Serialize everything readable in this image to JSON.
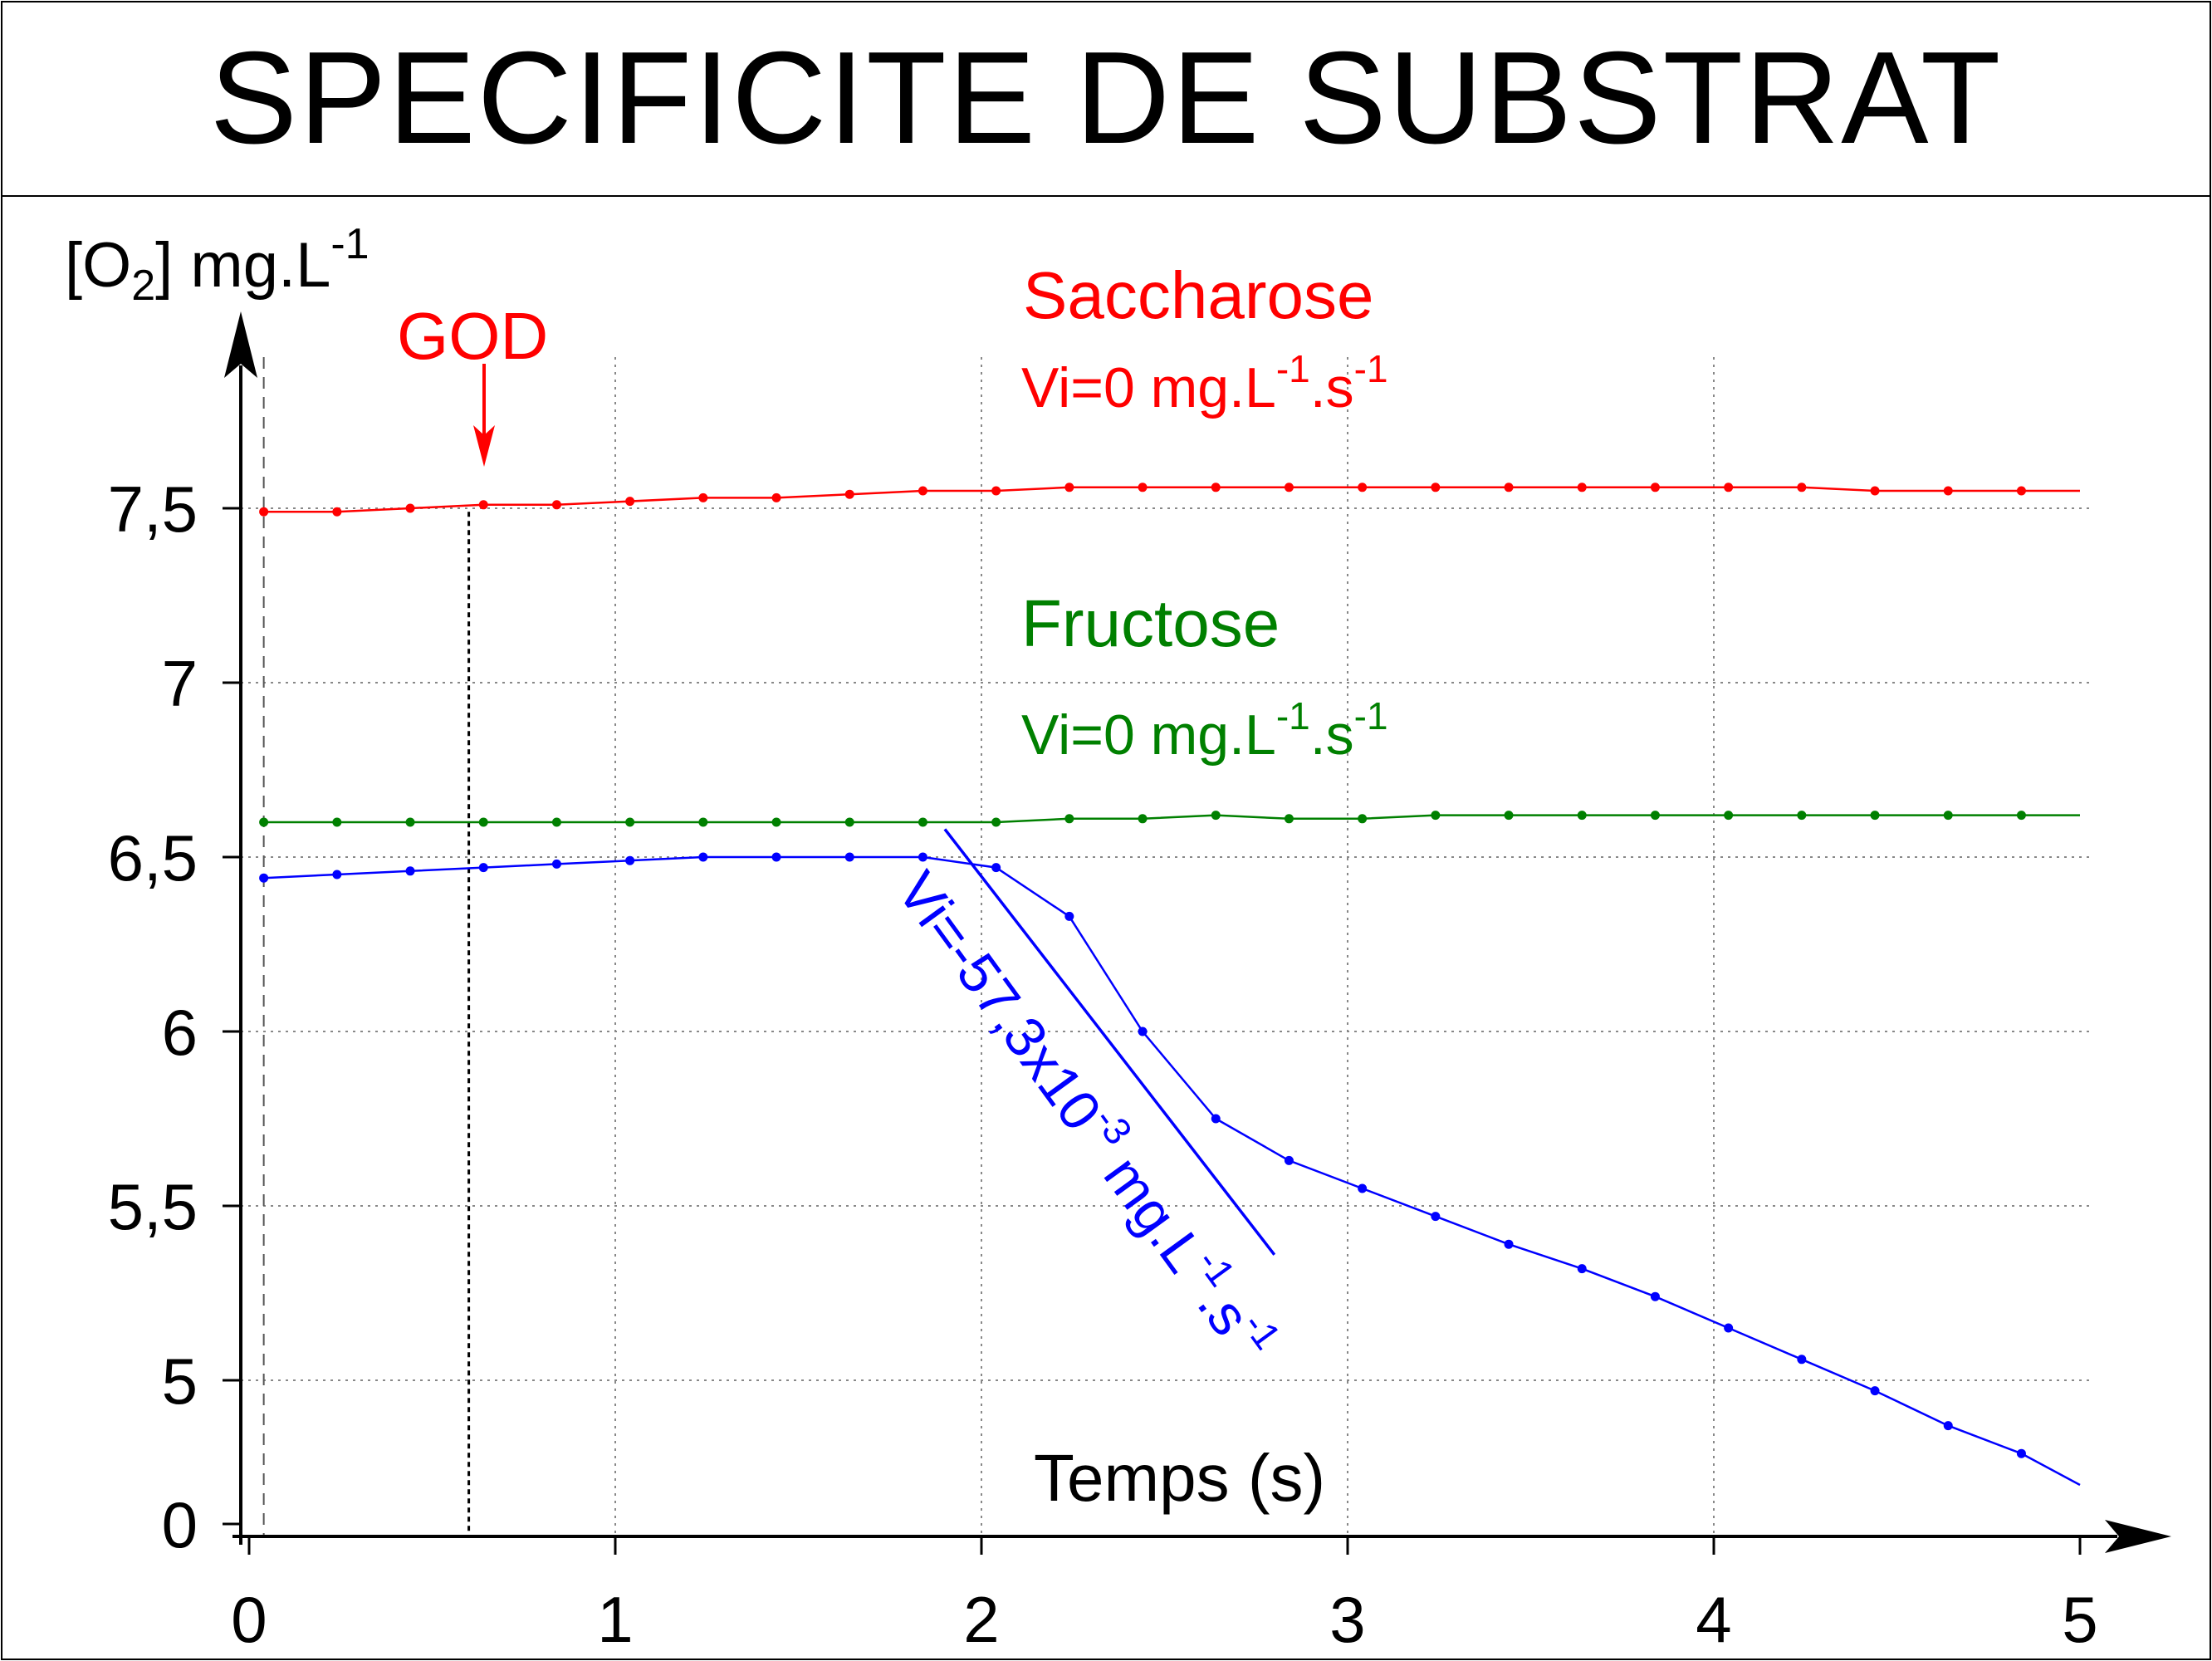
{
  "title": "SPECIFICITE DE SUBSTRAT",
  "colors": {
    "saccharose": "#ff0000",
    "fructose": "#008000",
    "glucose": "#0000ff",
    "axis": "#000000",
    "grid": "#888888",
    "god": "#ff0000"
  },
  "chart_data": {
    "type": "line",
    "title": "SPECIFICITE DE SUBSTRAT",
    "xlabel": "Temps (s)",
    "ylabel": {
      "main": "[O",
      "sub": "2",
      "rest": "] mg.L",
      "sup": "-1"
    },
    "x_ticks": [
      "0",
      "1",
      "2",
      "3",
      "4",
      "5"
    ],
    "y_ticks": [
      "0",
      "5",
      "5,5",
      "6",
      "6,5",
      "7",
      "7,5"
    ],
    "xlim": [
      0,
      5
    ],
    "ylim_display": [
      4.55,
      7.95
    ],
    "y_axis_break": "0 shown at bottom, scale starts near 4.6",
    "grid": "dotted",
    "god_marker": {
      "label": "GOD",
      "x": 0.6
    },
    "series": [
      {
        "key": "saccharose",
        "label": "Saccharose",
        "rate": {
          "text": "Vi=0 mg.L",
          "sup1": "-1",
          "mid": ".s",
          "sup2": "-1"
        },
        "x": [
          0.04,
          0.24,
          0.44,
          0.64,
          0.84,
          1.04,
          1.24,
          1.44,
          1.64,
          1.84,
          2.04,
          2.24,
          2.44,
          2.64,
          2.84,
          3.04,
          3.24,
          3.44,
          3.64,
          3.84,
          4.04,
          4.24,
          4.44,
          4.64,
          4.84,
          5.0
        ],
        "y": [
          7.49,
          7.49,
          7.5,
          7.51,
          7.51,
          7.52,
          7.53,
          7.53,
          7.54,
          7.55,
          7.55,
          7.56,
          7.56,
          7.56,
          7.56,
          7.56,
          7.56,
          7.56,
          7.56,
          7.56,
          7.56,
          7.56,
          7.55,
          7.55,
          7.55,
          7.55
        ]
      },
      {
        "key": "fructose",
        "label": "Fructose",
        "rate": {
          "text": "Vi=0 mg.L",
          "sup1": "-1",
          "mid": ".s",
          "sup2": "-1"
        },
        "x": [
          0.04,
          0.24,
          0.44,
          0.64,
          0.84,
          1.04,
          1.24,
          1.44,
          1.64,
          1.84,
          2.04,
          2.24,
          2.44,
          2.64,
          2.84,
          3.04,
          3.24,
          3.44,
          3.64,
          3.84,
          4.04,
          4.24,
          4.44,
          4.64,
          4.84,
          5.0
        ],
        "y": [
          6.6,
          6.6,
          6.6,
          6.6,
          6.6,
          6.6,
          6.6,
          6.6,
          6.6,
          6.6,
          6.6,
          6.61,
          6.61,
          6.62,
          6.61,
          6.61,
          6.62,
          6.62,
          6.62,
          6.62,
          6.62,
          6.62,
          6.62,
          6.62,
          6.62,
          6.62
        ]
      },
      {
        "key": "glucose",
        "label": "",
        "rate": {
          "text": "Vi=-57,3x10",
          "sup1": "-3",
          "mid": " mg.L",
          "sup2": "-1",
          "mid2": ".s",
          "sup3": "-1"
        },
        "x": [
          0.04,
          0.24,
          0.44,
          0.64,
          0.84,
          1.04,
          1.24,
          1.44,
          1.64,
          1.84,
          2.04,
          2.24,
          2.44,
          2.64,
          2.84,
          3.04,
          3.24,
          3.44,
          3.64,
          3.84,
          4.04,
          4.24,
          4.44,
          4.64,
          4.84,
          5.0
        ],
        "y": [
          6.44,
          6.45,
          6.46,
          6.47,
          6.48,
          6.49,
          6.5,
          6.5,
          6.5,
          6.5,
          6.47,
          6.33,
          6.0,
          5.75,
          5.63,
          5.55,
          5.47,
          5.39,
          5.32,
          5.24,
          5.15,
          5.06,
          4.97,
          4.87,
          4.79,
          4.7
        ]
      }
    ],
    "tangent": {
      "series": "glucose",
      "x": [
        1.9,
        2.8
      ],
      "y": [
        6.58,
        5.36
      ]
    }
  }
}
